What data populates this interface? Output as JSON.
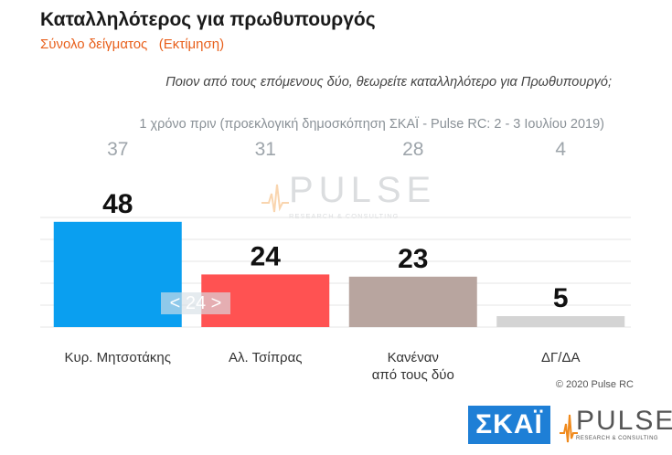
{
  "header": {
    "title": "Καταλληλότερος για πρωθυπουργός",
    "subtitle": "Σύνολο δείγματος   (Εκτίμηση)",
    "question": "Ποιον από τους επόμενους δύο, θεωρείτε καταλληλότερο για Πρωθυπουργό;",
    "previous_note": "1 χρόνο πριν (προεκλογική δημοσκόπηση ΣΚΑΪ - Pulse RC:  2 - 3 Ιουλίου 2019)"
  },
  "chart_data": {
    "type": "bar",
    "categories": [
      [
        "Κυρ. Μητσοτάκης"
      ],
      [
        "Αλ. Τσίπρας"
      ],
      [
        "Κανέναν",
        "από τους δύο"
      ],
      [
        "ΔΓ/ΔΑ"
      ]
    ],
    "values": [
      48,
      24,
      23,
      5
    ],
    "previous_values": [
      37,
      31,
      28,
      4
    ],
    "colors": [
      "#0a9ff0",
      "#ff5252",
      "#b8a59f",
      "#d4d4d4"
    ],
    "ylim": [
      0,
      50
    ],
    "grid": true
  },
  "overlay": {
    "difference_label": "< 24 >"
  },
  "watermark": {
    "word": "PULSE",
    "sub": "RESEARCH & CONSULTING"
  },
  "footer": {
    "copyright": "© 2020 Pulse RC",
    "skai_logo": "ΣΚΑΪ",
    "pulse_logo_word": "PULSE",
    "pulse_logo_sub": "RESEARCH & CONSULTING"
  }
}
